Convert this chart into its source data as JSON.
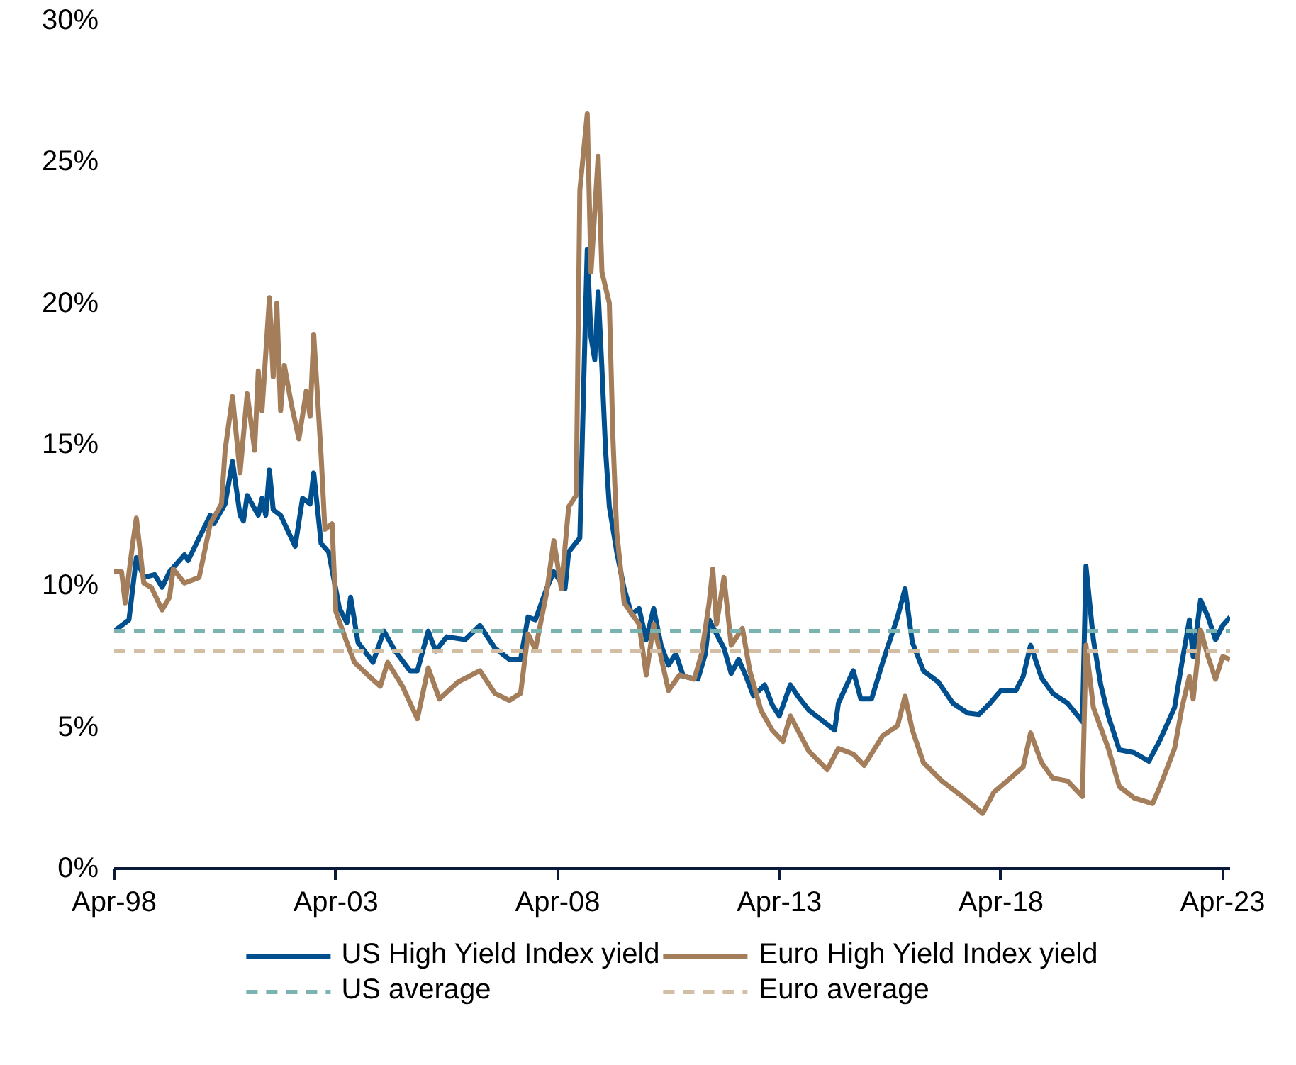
{
  "chart_data": {
    "type": "line",
    "xlim": [
      "1998-04",
      "2023-06"
    ],
    "xticks": [
      {
        "value": "1998-04",
        "label": "Apr-98"
      },
      {
        "value": "2003-04",
        "label": "Apr-03"
      },
      {
        "value": "2008-04",
        "label": "Apr-08"
      },
      {
        "value": "2013-04",
        "label": "Apr-13"
      },
      {
        "value": "2018-04",
        "label": "Apr-18"
      },
      {
        "value": "2023-04",
        "label": "Apr-23"
      }
    ],
    "ylim": [
      0,
      30
    ],
    "yticks": [
      {
        "value": 0,
        "label": "0%"
      },
      {
        "value": 5,
        "label": "5%"
      },
      {
        "value": 10,
        "label": "10%"
      },
      {
        "value": 15,
        "label": "15%"
      },
      {
        "value": 20,
        "label": "20%"
      },
      {
        "value": 25,
        "label": "25%"
      },
      {
        "value": 30,
        "label": "30%"
      }
    ],
    "grid": false,
    "legend": "bottom",
    "line_style": "solid",
    "marker": "none",
    "series": [
      {
        "name": "US High Yield Index yield",
        "color": "#00508f",
        "x": [
          "1998-04",
          "1998-08",
          "1998-10",
          "1998-12",
          "1999-03",
          "1999-05",
          "1999-07",
          "1999-11",
          "1999-12",
          "2000-03",
          "2000-06",
          "2000-07",
          "2000-10",
          "2000-12",
          "2001-02",
          "2001-03",
          "2001-04",
          "2001-07",
          "2001-08",
          "2001-09",
          "2001-10",
          "2001-11",
          "2002-01",
          "2002-05",
          "2002-07",
          "2002-09",
          "2002-10",
          "2002-12",
          "2003-02",
          "2003-05",
          "2003-07",
          "2003-08",
          "2003-10",
          "2004-02",
          "2004-05",
          "2004-08",
          "2004-12",
          "2005-02",
          "2005-05",
          "2005-07",
          "2005-10",
          "2006-03",
          "2006-07",
          "2006-11",
          "2007-03",
          "2007-06",
          "2007-08",
          "2007-10",
          "2008-01",
          "2008-03",
          "2008-06",
          "2008-07",
          "2008-10",
          "2008-11",
          "2008-12",
          "2009-01",
          "2009-02",
          "2009-03",
          "2009-04",
          "2009-05",
          "2009-06",
          "2009-08",
          "2009-10",
          "2009-12",
          "2010-02",
          "2010-04",
          "2010-06",
          "2010-08",
          "2010-10",
          "2010-12",
          "2011-02",
          "2011-06",
          "2011-08",
          "2011-09",
          "2011-11",
          "2012-01",
          "2012-03",
          "2012-05",
          "2012-07",
          "2012-09",
          "2012-12",
          "2013-02",
          "2013-04",
          "2013-07",
          "2013-09",
          "2013-12",
          "2014-07",
          "2014-08",
          "2014-12",
          "2015-02",
          "2015-05",
          "2015-08",
          "2015-12",
          "2016-02",
          "2016-04",
          "2016-07",
          "2016-11",
          "2017-03",
          "2017-07",
          "2017-10",
          "2018-01",
          "2018-04",
          "2018-08",
          "2018-10",
          "2018-12",
          "2019-03",
          "2019-06",
          "2019-10",
          "2020-02",
          "2020-03",
          "2020-05",
          "2020-07",
          "2020-09",
          "2020-12",
          "2021-04",
          "2021-08",
          "2021-11",
          "2022-03",
          "2022-05",
          "2022-07",
          "2022-08",
          "2022-10",
          "2022-12",
          "2023-02",
          "2023-04",
          "2023-06"
        ],
        "values": [
          8.4,
          8.8,
          11.0,
          10.3,
          10.4,
          9.95,
          10.5,
          11.1,
          10.9,
          11.7,
          12.5,
          12.2,
          12.9,
          14.4,
          12.5,
          12.3,
          13.2,
          12.5,
          13.1,
          12.5,
          14.1,
          12.7,
          12.5,
          11.4,
          13.1,
          12.9,
          14.0,
          11.5,
          11.2,
          9.2,
          8.7,
          9.6,
          8.0,
          7.3,
          8.4,
          7.7,
          7.0,
          7.0,
          8.4,
          7.7,
          8.2,
          8.1,
          8.6,
          7.8,
          7.4,
          7.4,
          8.9,
          8.8,
          9.9,
          10.5,
          9.9,
          11.2,
          11.7,
          17.0,
          21.9,
          18.8,
          18.0,
          20.4,
          17.7,
          14.8,
          12.8,
          11.2,
          9.9,
          9.0,
          9.2,
          8.1,
          9.2,
          7.9,
          7.2,
          7.6,
          6.8,
          6.7,
          7.6,
          8.8,
          8.3,
          7.8,
          6.9,
          7.4,
          6.8,
          6.1,
          6.5,
          5.8,
          5.4,
          6.5,
          6.1,
          5.6,
          4.9,
          5.85,
          7.0,
          6.0,
          6.0,
          7.3,
          8.9,
          9.9,
          8.0,
          7.0,
          6.6,
          5.85,
          5.5,
          5.45,
          5.85,
          6.3,
          6.3,
          6.8,
          7.9,
          6.75,
          6.2,
          5.85,
          5.2,
          10.7,
          8.1,
          6.5,
          5.4,
          4.2,
          4.1,
          3.8,
          4.55,
          5.7,
          7.3,
          8.8,
          7.5,
          9.5,
          8.9,
          8.1,
          8.6,
          8.9
        ]
      },
      {
        "name": "Euro High Yield Index yield",
        "color": "#a47e5a",
        "x": [
          "1998-04",
          "1998-06",
          "1998-07",
          "1998-09",
          "1998-10",
          "1998-12",
          "1999-02",
          "1999-05",
          "1999-07",
          "1999-08",
          "1999-11",
          "2000-03",
          "2000-06",
          "2000-09",
          "2000-10",
          "2000-12",
          "2001-02",
          "2001-04",
          "2001-06",
          "2001-07",
          "2001-08",
          "2001-10",
          "2001-11",
          "2001-12",
          "2002-01",
          "2002-02",
          "2002-04",
          "2002-06",
          "2002-08",
          "2002-09",
          "2002-10",
          "2002-12",
          "2003-01",
          "2003-03",
          "2003-04",
          "2003-07",
          "2003-09",
          "2004-01",
          "2004-04",
          "2004-06",
          "2004-10",
          "2005-02",
          "2005-05",
          "2005-08",
          "2006-01",
          "2006-07",
          "2006-11",
          "2007-03",
          "2007-06",
          "2007-08",
          "2007-10",
          "2008-01",
          "2008-03",
          "2008-05",
          "2008-07",
          "2008-09",
          "2008-10",
          "2008-12",
          "2009-01",
          "2009-03",
          "2009-04",
          "2009-06",
          "2009-07",
          "2009-08",
          "2009-10",
          "2010-02",
          "2010-04",
          "2010-06",
          "2010-10",
          "2011-01",
          "2011-05",
          "2011-07",
          "2011-09",
          "2011-10",
          "2011-11",
          "2012-01",
          "2012-03",
          "2012-06",
          "2012-08",
          "2012-11",
          "2013-02",
          "2013-05",
          "2013-07",
          "2013-12",
          "2014-05",
          "2014-08",
          "2014-12",
          "2015-03",
          "2015-08",
          "2015-12",
          "2016-02",
          "2016-04",
          "2016-07",
          "2016-12",
          "2017-06",
          "2017-11",
          "2018-02",
          "2018-07",
          "2018-10",
          "2018-12",
          "2019-03",
          "2019-06",
          "2019-10",
          "2020-02",
          "2020-03",
          "2020-05",
          "2020-09",
          "2020-12",
          "2021-04",
          "2021-09",
          "2021-11",
          "2022-03",
          "2022-05",
          "2022-07",
          "2022-08",
          "2022-10",
          "2022-12",
          "2023-02",
          "2023-04",
          "2023-06"
        ],
        "values": [
          10.5,
          10.5,
          9.4,
          11.5,
          12.4,
          10.1,
          9.95,
          9.15,
          9.6,
          10.6,
          10.1,
          10.3,
          12.2,
          12.9,
          14.8,
          16.7,
          14.0,
          16.8,
          14.8,
          17.6,
          16.2,
          20.2,
          17.4,
          20.0,
          16.2,
          17.8,
          16.4,
          15.2,
          16.9,
          16.0,
          18.9,
          14.6,
          12.0,
          12.2,
          9.1,
          8.0,
          7.3,
          6.8,
          6.45,
          7.3,
          6.45,
          5.3,
          7.1,
          6.0,
          6.6,
          7.0,
          6.2,
          5.95,
          6.2,
          8.3,
          7.75,
          9.75,
          11.6,
          9.9,
          12.8,
          13.2,
          24.0,
          26.7,
          21.1,
          25.2,
          21.1,
          20.0,
          15.2,
          11.9,
          9.4,
          8.65,
          6.85,
          8.65,
          6.3,
          6.85,
          6.7,
          7.6,
          9.4,
          10.6,
          8.65,
          10.3,
          7.9,
          8.5,
          7.0,
          5.6,
          4.9,
          4.5,
          5.4,
          4.15,
          3.5,
          4.25,
          4.05,
          3.65,
          4.7,
          5.05,
          6.1,
          4.9,
          3.75,
          3.1,
          2.5,
          1.95,
          2.7,
          3.25,
          3.6,
          4.8,
          3.75,
          3.2,
          3.1,
          2.55,
          7.9,
          5.7,
          4.25,
          2.9,
          2.5,
          2.3,
          2.9,
          4.25,
          5.7,
          6.8,
          6.0,
          8.45,
          7.5,
          6.7,
          7.5,
          7.4
        ]
      }
    ],
    "ref_lines": [
      {
        "axis": "y",
        "value": 8.4,
        "label": "US average",
        "color": "#7ab3b0",
        "line_style": "dashed"
      },
      {
        "axis": "y",
        "value": 7.7,
        "label": "Euro average",
        "color": "#d2bda5",
        "line_style": "dashed"
      }
    ]
  }
}
